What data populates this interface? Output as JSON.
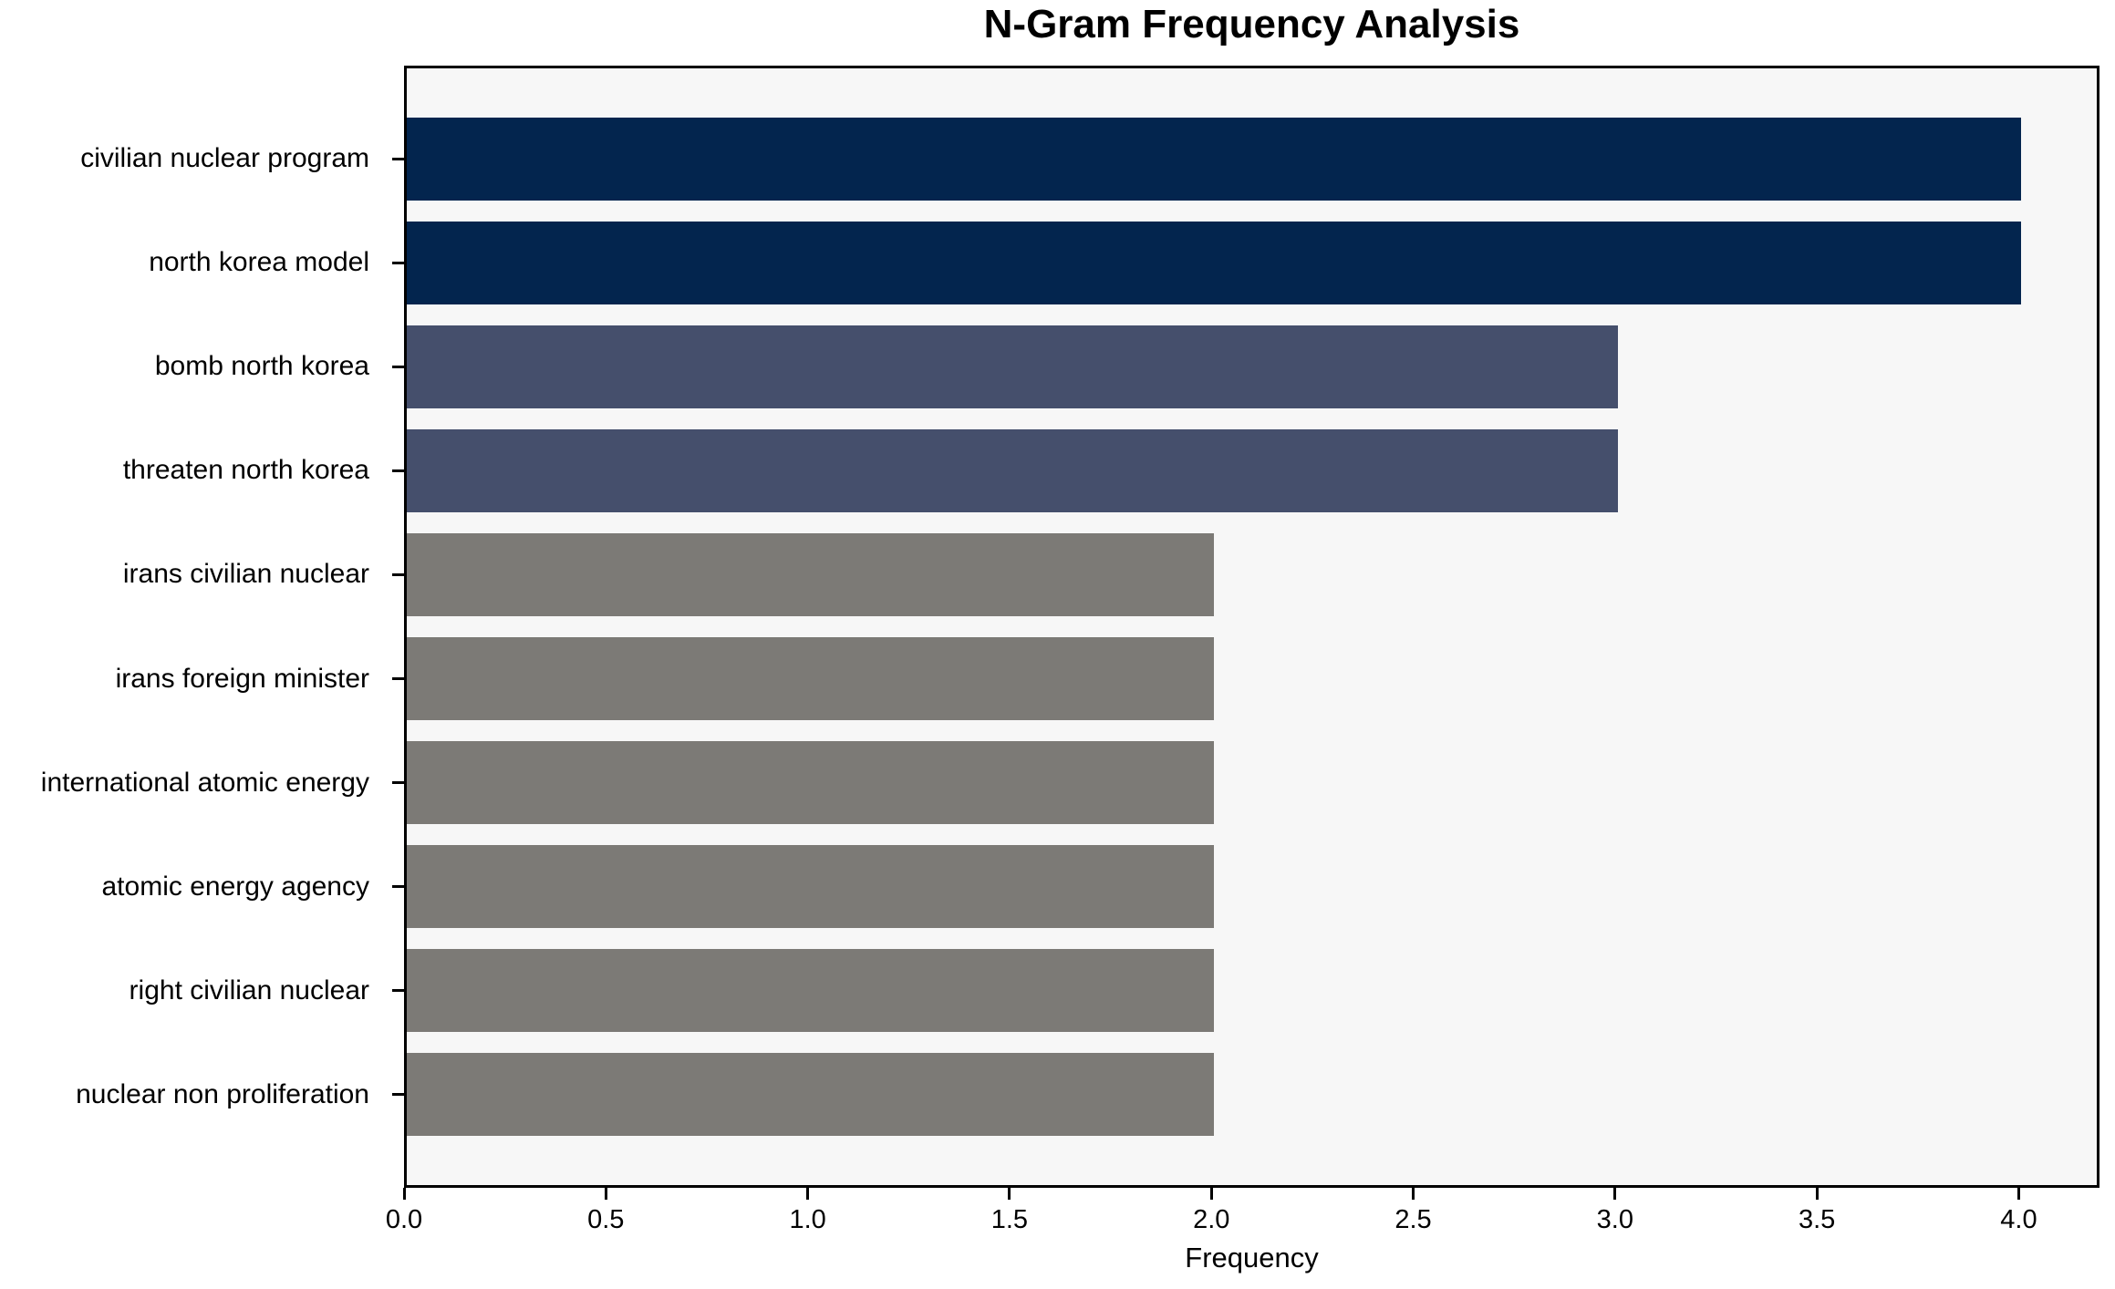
{
  "chart_data": {
    "type": "bar",
    "orientation": "horizontal",
    "title": "N-Gram Frequency Analysis",
    "xlabel": "Frequency",
    "ylabel": "",
    "categories": [
      "civilian nuclear program",
      "north korea model",
      "bomb north korea",
      "threaten north korea",
      "irans civilian nuclear",
      "irans foreign minister",
      "international atomic energy",
      "atomic energy agency",
      "right civilian nuclear",
      "nuclear non proliferation"
    ],
    "values": [
      4,
      4,
      3,
      3,
      2,
      2,
      2,
      2,
      2,
      2
    ],
    "bar_colors": [
      "#03254e",
      "#03254e",
      "#454f6c",
      "#454f6c",
      "#7c7a76",
      "#7c7a76",
      "#7c7a76",
      "#7c7a76",
      "#7c7a76",
      "#7c7a76"
    ],
    "xlim": [
      0,
      4.2
    ],
    "xticks": [
      {
        "value": 0.0,
        "label": "0.0"
      },
      {
        "value": 0.5,
        "label": "0.5"
      },
      {
        "value": 1.0,
        "label": "1.0"
      },
      {
        "value": 1.5,
        "label": "1.5"
      },
      {
        "value": 2.0,
        "label": "2.0"
      },
      {
        "value": 2.5,
        "label": "2.5"
      },
      {
        "value": 3.0,
        "label": "3.0"
      },
      {
        "value": 3.5,
        "label": "3.5"
      },
      {
        "value": 4.0,
        "label": "4.0"
      }
    ],
    "grid": false,
    "legend": "none",
    "colors": {
      "navy": "#03254e",
      "slate": "#454f6c",
      "gray": "#7c7a76",
      "plot_background": "#f7f7f7",
      "page_background": "#ffffff",
      "border": "#000000"
    }
  }
}
